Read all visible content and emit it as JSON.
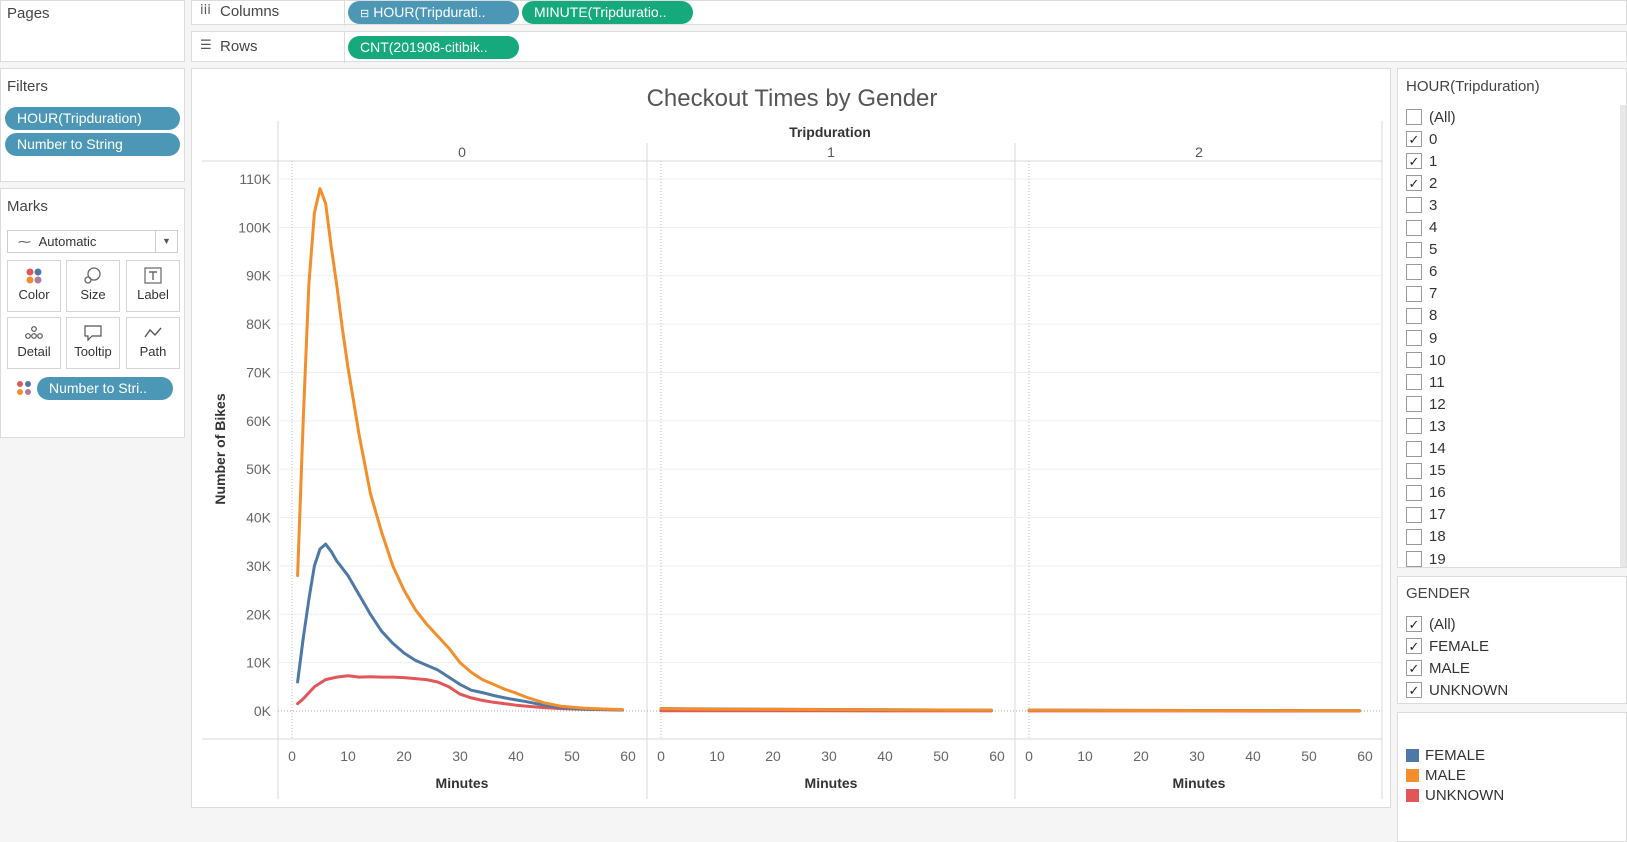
{
  "shelves": {
    "pages_label": "Pages",
    "columns_label": "Columns",
    "rows_label": "Rows",
    "columns_pills": [
      "HOUR(Tripdurati..",
      "MINUTE(Tripduratio.."
    ],
    "rows_pills": [
      "CNT(201908-citibik.."
    ]
  },
  "filters": {
    "title": "Filters",
    "items": [
      "HOUR(Tripduration)",
      "Number to String"
    ]
  },
  "marks": {
    "title": "Marks",
    "type": "Automatic",
    "buttons": [
      "Color",
      "Size",
      "Label",
      "Detail",
      "Tooltip",
      "Path"
    ],
    "color_pill": "Number to Stri.."
  },
  "hour_filter": {
    "title": "HOUR(Tripduration)",
    "items": [
      {
        "label": "(All)",
        "checked": false
      },
      {
        "label": "0",
        "checked": true
      },
      {
        "label": "1",
        "checked": true
      },
      {
        "label": "2",
        "checked": true
      },
      {
        "label": "3",
        "checked": false
      },
      {
        "label": "4",
        "checked": false
      },
      {
        "label": "5",
        "checked": false
      },
      {
        "label": "6",
        "checked": false
      },
      {
        "label": "7",
        "checked": false
      },
      {
        "label": "8",
        "checked": false
      },
      {
        "label": "9",
        "checked": false
      },
      {
        "label": "10",
        "checked": false
      },
      {
        "label": "11",
        "checked": false
      },
      {
        "label": "12",
        "checked": false
      },
      {
        "label": "13",
        "checked": false
      },
      {
        "label": "14",
        "checked": false
      },
      {
        "label": "15",
        "checked": false
      },
      {
        "label": "16",
        "checked": false
      },
      {
        "label": "17",
        "checked": false
      },
      {
        "label": "18",
        "checked": false
      },
      {
        "label": "19",
        "checked": false
      }
    ]
  },
  "gender_filter": {
    "title": "GENDER",
    "items": [
      {
        "label": "(All)",
        "checked": true
      },
      {
        "label": "FEMALE",
        "checked": true
      },
      {
        "label": "MALE",
        "checked": true
      },
      {
        "label": "UNKNOWN",
        "checked": true
      }
    ]
  },
  "legend": {
    "items": [
      {
        "label": "FEMALE",
        "color": "#4e79a7"
      },
      {
        "label": "MALE",
        "color": "#f28e2b"
      },
      {
        "label": "UNKNOWN",
        "color": "#e15759"
      }
    ]
  },
  "chart_data": {
    "type": "line",
    "title": "Checkout Times by Gender",
    "facet_header": "Tripduration",
    "facets": [
      "0",
      "1",
      "2"
    ],
    "xlabel": "Minutes",
    "ylabel": "Number of Bikes",
    "ylim": [
      0,
      110000
    ],
    "xlim": [
      0,
      60
    ],
    "y_ticks": [
      "0K",
      "10K",
      "20K",
      "30K",
      "40K",
      "50K",
      "60K",
      "70K",
      "80K",
      "90K",
      "100K",
      "110K"
    ],
    "x_ticks": [
      "0",
      "10",
      "20",
      "30",
      "40",
      "50",
      "60"
    ],
    "grid": true,
    "series": [
      {
        "name": "MALE",
        "color": "#f28e2b",
        "panels": [
          {
            "x": [
              1,
              2,
              3,
              4,
              5,
              6,
              7,
              8,
              9,
              10,
              12,
              14,
              16,
              18,
              20,
              22,
              24,
              26,
              28,
              30,
              32,
              34,
              36,
              38,
              40,
              42,
              45,
              48,
              52,
              56,
              59
            ],
            "y": [
              28000,
              60000,
              88000,
              103000,
              108000,
              105000,
              96000,
              88000,
              79000,
              71000,
              57000,
              45000,
              37000,
              30000,
              25000,
              21000,
              18000,
              15500,
              13000,
              10000,
              8000,
              6500,
              5500,
              4500,
              3700,
              2800,
              1700,
              1000,
              600,
              400,
              300
            ]
          },
          {
            "x": [
              0,
              10,
              20,
              30,
              40,
              50,
              59
            ],
            "y": [
              450,
              380,
              330,
              290,
              250,
              200,
              150
            ]
          },
          {
            "x": [
              0,
              10,
              20,
              30,
              40,
              50,
              59
            ],
            "y": [
              150,
              120,
              100,
              90,
              80,
              70,
              60
            ]
          }
        ]
      },
      {
        "name": "FEMALE",
        "color": "#4e79a7",
        "panels": [
          {
            "x": [
              1,
              2,
              3,
              4,
              5,
              6,
              7,
              8,
              10,
              12,
              14,
              16,
              18,
              20,
              22,
              24,
              26,
              28,
              30,
              32,
              34,
              36,
              38,
              40,
              42,
              45,
              48,
              52,
              56,
              59
            ],
            "y": [
              6000,
              15000,
              23000,
              30000,
              33500,
              34500,
              33000,
              31000,
              28000,
              24000,
              20000,
              16500,
              14000,
              12000,
              10500,
              9500,
              8500,
              7000,
              5500,
              4300,
              3800,
              3200,
              2700,
              2300,
              1900,
              1200,
              700,
              400,
              300,
              200
            ]
          },
          {
            "x": [
              0,
              10,
              20,
              30,
              40,
              50,
              59
            ],
            "y": [
              500,
              420,
              360,
              300,
              260,
              210,
              160
            ]
          },
          {
            "x": [
              0,
              10,
              20,
              30,
              40,
              50,
              59
            ],
            "y": [
              180,
              150,
              130,
              110,
              100,
              90,
              80
            ]
          }
        ]
      },
      {
        "name": "UNKNOWN",
        "color": "#e15759",
        "panels": [
          {
            "x": [
              1,
              2,
              4,
              6,
              8,
              10,
              12,
              14,
              16,
              18,
              20,
              22,
              24,
              26,
              28,
              30,
              32,
              34,
              36,
              38,
              40,
              42,
              45,
              48,
              52,
              56,
              59
            ],
            "y": [
              1500,
              2500,
              5000,
              6500,
              7000,
              7300,
              7000,
              7100,
              7000,
              7000,
              6900,
              6700,
              6500,
              6000,
              5000,
              3500,
              2700,
              2200,
              1800,
              1500,
              1200,
              1000,
              700,
              500,
              350,
              250,
              200
            ]
          },
          {
            "x": [
              0,
              10,
              20,
              30,
              40,
              50,
              59
            ],
            "y": [
              60,
              50,
              40,
              35,
              30,
              25,
              20
            ]
          },
          {
            "x": [
              0,
              10,
              20,
              30,
              40,
              50,
              59
            ],
            "y": [
              20,
              18,
              15,
              12,
              10,
              8,
              6
            ]
          }
        ]
      }
    ]
  }
}
